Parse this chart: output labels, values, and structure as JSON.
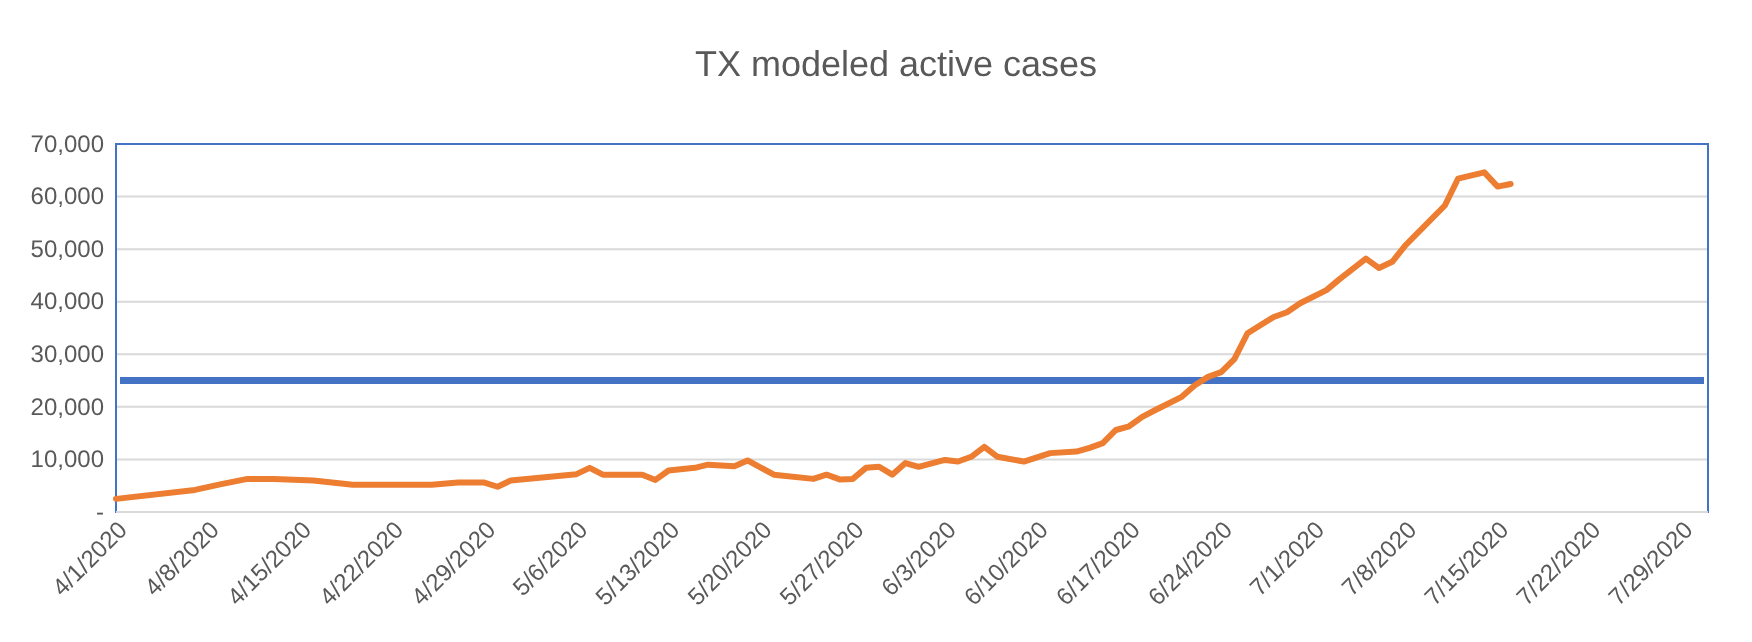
{
  "chart_data": {
    "type": "line",
    "title": "TX modeled active cases",
    "x": [
      "2020-04-01",
      "2020-04-07",
      "2020-04-09",
      "2020-04-11",
      "2020-04-13",
      "2020-04-16",
      "2020-04-19",
      "2020-04-25",
      "2020-04-27",
      "2020-04-29",
      "2020-04-30",
      "2020-05-01",
      "2020-05-04",
      "2020-05-06",
      "2020-05-07",
      "2020-05-08",
      "2020-05-11",
      "2020-05-12",
      "2020-05-13",
      "2020-05-15",
      "2020-05-16",
      "2020-05-18",
      "2020-05-19",
      "2020-05-21",
      "2020-05-24",
      "2020-05-25",
      "2020-05-26",
      "2020-05-27",
      "2020-05-28",
      "2020-05-29",
      "2020-05-30",
      "2020-05-31",
      "2020-06-01",
      "2020-06-03",
      "2020-06-04",
      "2020-06-05",
      "2020-06-06",
      "2020-06-07",
      "2020-06-09",
      "2020-06-11",
      "2020-06-13",
      "2020-06-14",
      "2020-06-15",
      "2020-06-16",
      "2020-06-17",
      "2020-06-18",
      "2020-06-19",
      "2020-06-21",
      "2020-06-22",
      "2020-06-23",
      "2020-06-24",
      "2020-06-25",
      "2020-06-26",
      "2020-06-28",
      "2020-06-29",
      "2020-06-30",
      "2020-07-02",
      "2020-07-03",
      "2020-07-05",
      "2020-07-06",
      "2020-07-07",
      "2020-07-08",
      "2020-07-11",
      "2020-07-12",
      "2020-07-14",
      "2020-07-15",
      "2020-07-16"
    ],
    "series": [
      {
        "color": "#ed7d31",
        "values": [
          2500,
          4200,
          5300,
          6300,
          6300,
          6000,
          5200,
          5200,
          5600,
          5600,
          4800,
          6000,
          6700,
          7200,
          8400,
          7100,
          7100,
          6100,
          7900,
          8400,
          9000,
          8700,
          9800,
          7100,
          6300,
          7100,
          6200,
          6300,
          8400,
          8600,
          7100,
          9300,
          8600,
          9900,
          9600,
          10500,
          12400,
          10500,
          9600,
          11200,
          11500,
          12200,
          13100,
          15600,
          16300,
          18100,
          19400,
          21900,
          24100,
          25700,
          26600,
          29100,
          34000,
          37100,
          38000,
          39700,
          42200,
          44300,
          48200,
          46400,
          47600,
          50700,
          58300,
          63400,
          64600,
          61900,
          62400
        ]
      }
    ],
    "ref_lines": [
      {
        "axis": "y",
        "value": 25000,
        "color": "#4472c4"
      }
    ],
    "xlim": [
      "2020-04-01",
      "2020-07-31"
    ],
    "xticks": [
      {
        "value": "2020-04-01",
        "label": "4/1/2020"
      },
      {
        "value": "2020-04-08",
        "label": "4/8/2020"
      },
      {
        "value": "2020-04-15",
        "label": "4/15/2020"
      },
      {
        "value": "2020-04-22",
        "label": "4/22/2020"
      },
      {
        "value": "2020-04-29",
        "label": "4/29/2020"
      },
      {
        "value": "2020-05-06",
        "label": "5/6/2020"
      },
      {
        "value": "2020-05-13",
        "label": "5/13/2020"
      },
      {
        "value": "2020-05-20",
        "label": "5/20/2020"
      },
      {
        "value": "2020-05-27",
        "label": "5/27/2020"
      },
      {
        "value": "2020-06-03",
        "label": "6/3/2020"
      },
      {
        "value": "2020-06-10",
        "label": "6/10/2020"
      },
      {
        "value": "2020-06-17",
        "label": "6/17/2020"
      },
      {
        "value": "2020-06-24",
        "label": "6/24/2020"
      },
      {
        "value": "2020-07-01",
        "label": "7/1/2020"
      },
      {
        "value": "2020-07-08",
        "label": "7/8/2020"
      },
      {
        "value": "2020-07-15",
        "label": "7/15/2020"
      },
      {
        "value": "2020-07-22",
        "label": "7/22/2020"
      },
      {
        "value": "2020-07-29",
        "label": "7/29/2020"
      }
    ],
    "ylim": [
      0,
      70000
    ],
    "yticks": [
      {
        "value": 0,
        "label": "-"
      },
      {
        "value": 10000,
        "label": "10,000"
      },
      {
        "value": 20000,
        "label": "20,000"
      },
      {
        "value": 30000,
        "label": "30,000"
      },
      {
        "value": 40000,
        "label": "40,000"
      },
      {
        "value": 50000,
        "label": "50,000"
      },
      {
        "value": 60000,
        "label": "60,000"
      },
      {
        "value": 70000,
        "label": "70,000"
      }
    ],
    "grid": "y",
    "marker": "none",
    "line_style": "solid"
  }
}
